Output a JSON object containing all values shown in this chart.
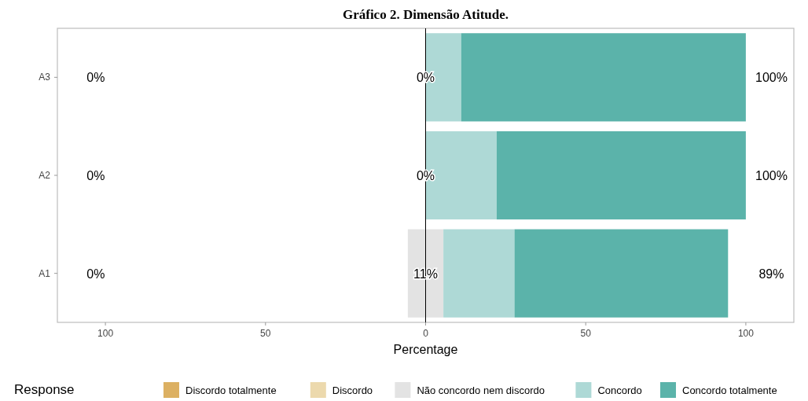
{
  "chart_data": {
    "type": "bar",
    "title": "Gráfico 2. Dimensão Atitude.",
    "orientation": "horizontal",
    "stacked": true,
    "categories": [
      "A3",
      "A2",
      "A1"
    ],
    "series": [
      {
        "name": "Discordo totalmente",
        "color": "#dcb062",
        "values": [
          0,
          0,
          0
        ]
      },
      {
        "name": "Discordo",
        "color": "#ecd9ad",
        "values": [
          0,
          0,
          0
        ]
      },
      {
        "color": "#e3e3e3",
        "values": [
          0,
          0,
          -5.55
        ]
      },
      {
        "name": "Não concordo nem discordo",
        "color": "#e3e3e3",
        "values": [
          0,
          0,
          5.55
        ]
      },
      {
        "name": "Concordo",
        "color": "#aed9d6",
        "values": [
          11.1,
          22.2,
          22.2
        ]
      },
      {
        "name": "Concordo totalmente",
        "color": "#5bb3aa",
        "values": [
          88.9,
          77.8,
          66.7
        ]
      }
    ],
    "xlim": [
      -115,
      115
    ],
    "xticks": [
      {
        "value": -100,
        "label": "100"
      },
      {
        "value": -50,
        "label": "50"
      },
      0,
      50,
      100
    ],
    "xlabel": "Percentage",
    "legend_title": "Response",
    "legend": "bottom",
    "ref_lines": [
      {
        "axis": "x",
        "value": 0,
        "color": "#000000"
      }
    ],
    "annotations": [
      "0%",
      "0%",
      "100%",
      "0%",
      "0%",
      "100%",
      "0%",
      "11%",
      "89%"
    ]
  }
}
